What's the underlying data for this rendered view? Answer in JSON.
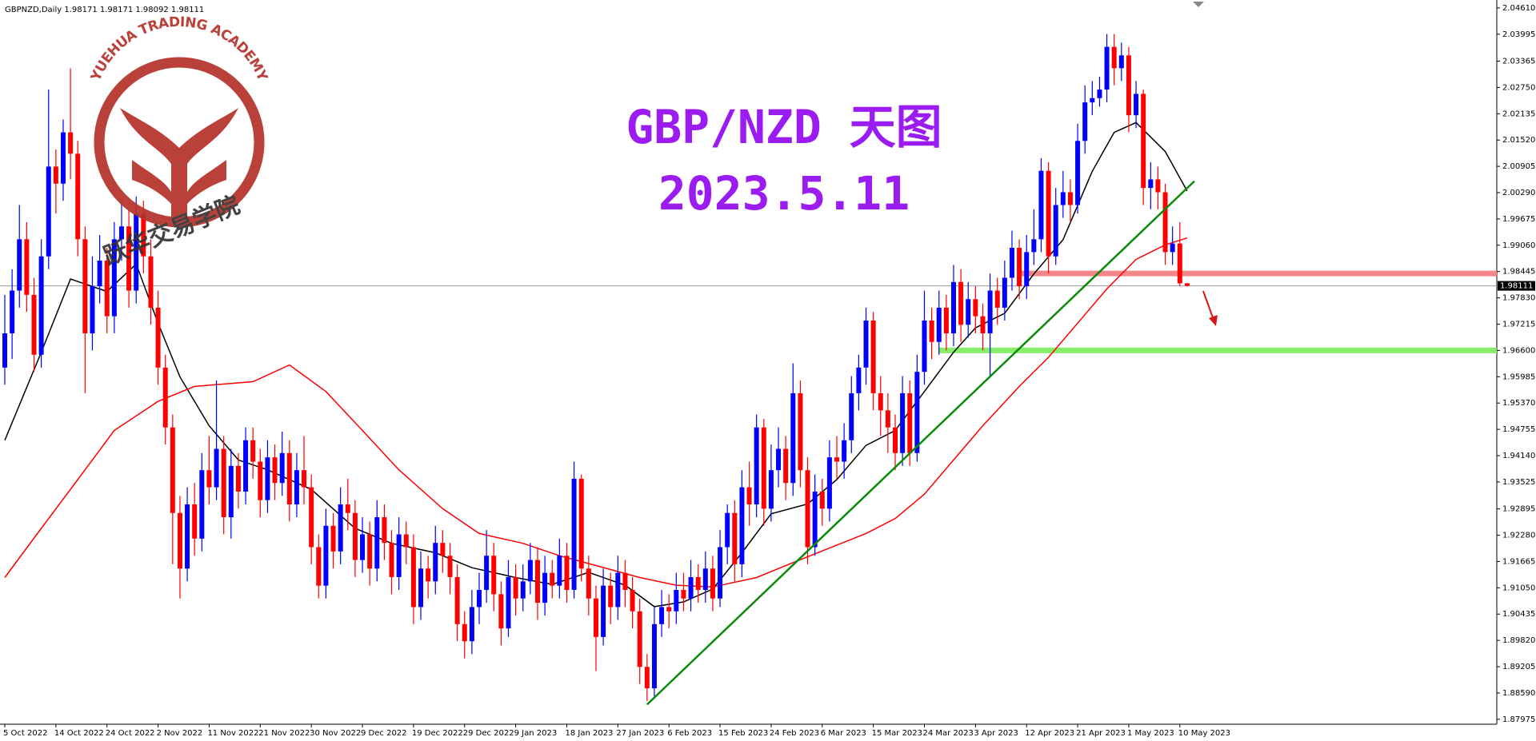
{
  "chart_data": {
    "type": "candlestick",
    "header": "GBPNZD,Daily  1.98171 1.98171 1.98092 1.98111",
    "title": "GBP/NZD 天图",
    "subtitle": "2023.5.11",
    "logo_text": "YUEHUA TRADING ACADEMY",
    "logo_text_cn": "跃华交易学院",
    "up_color": "#0000ff",
    "down_color": "#ff0000",
    "ylim": [
      1.8786,
      2.0472
    ],
    "yticks": [
      {
        "value": 2.0461,
        "label": "2.04610"
      },
      {
        "value": 2.03995,
        "label": "2.03995"
      },
      {
        "value": 2.03365,
        "label": "2.03365"
      },
      {
        "value": 2.0275,
        "label": "2.02750"
      },
      {
        "value": 2.02135,
        "label": "2.02135"
      },
      {
        "value": 2.0152,
        "label": "2.01520"
      },
      {
        "value": 2.00905,
        "label": "2.00905"
      },
      {
        "value": 2.0029,
        "label": "2.00290"
      },
      {
        "value": 1.99675,
        "label": "1.99675"
      },
      {
        "value": 1.9906,
        "label": "1.99060"
      },
      {
        "value": 1.98445,
        "label": "1.98445"
      },
      {
        "value": 1.9783,
        "label": "1.97830"
      },
      {
        "value": 1.97215,
        "label": "1.97215"
      },
      {
        "value": 1.966,
        "label": "1.96600"
      },
      {
        "value": 1.95985,
        "label": "1.95985"
      },
      {
        "value": 1.9537,
        "label": "1.95370"
      },
      {
        "value": 1.94755,
        "label": "1.94755"
      },
      {
        "value": 1.9414,
        "label": "1.94140"
      },
      {
        "value": 1.93525,
        "label": "1.93525"
      },
      {
        "value": 1.92895,
        "label": "1.92895"
      },
      {
        "value": 1.9228,
        "label": "1.92280"
      },
      {
        "value": 1.91665,
        "label": "1.91665"
      },
      {
        "value": 1.9105,
        "label": "1.91050"
      },
      {
        "value": 1.90435,
        "label": "1.90435"
      },
      {
        "value": 1.8982,
        "label": "1.89820"
      },
      {
        "value": 1.89205,
        "label": "1.89205"
      },
      {
        "value": 1.8859,
        "label": "1.88590"
      },
      {
        "value": 1.87975,
        "label": "1.87975"
      }
    ],
    "current_price": {
      "value": 1.98111,
      "label": "1.98111"
    },
    "categories": [
      "5 Oct 2022",
      null,
      null,
      null,
      null,
      null,
      null,
      "14 Oct 2022",
      null,
      null,
      null,
      null,
      null,
      null,
      "24 Oct 2022",
      null,
      null,
      null,
      null,
      null,
      null,
      "2 Nov 2022",
      null,
      null,
      null,
      null,
      null,
      null,
      "11 Nov 2022",
      null,
      null,
      null,
      null,
      null,
      null,
      "21 Nov 2022",
      null,
      null,
      null,
      null,
      null,
      null,
      "30 Nov 2022",
      null,
      null,
      null,
      null,
      null,
      null,
      "9 Dec 2022",
      null,
      null,
      null,
      null,
      null,
      null,
      "19 Dec 2022",
      null,
      null,
      null,
      null,
      null,
      null,
      "29 Dec 2022",
      null,
      null,
      null,
      null,
      null,
      null,
      "9 Jan 2023",
      null,
      null,
      null,
      null,
      null,
      null,
      "18 Jan 2023",
      null,
      null,
      null,
      null,
      null,
      null,
      "27 Jan 2023",
      null,
      null,
      null,
      null,
      null,
      null,
      "6 Feb 2023",
      null,
      null,
      null,
      null,
      null,
      null,
      "15 Feb 2023",
      null,
      null,
      null,
      null,
      null,
      null,
      "24 Feb 2023",
      null,
      null,
      null,
      null,
      null,
      null,
      "6 Mar 2023",
      null,
      null,
      null,
      null,
      null,
      null,
      "15 Mar 2023",
      null,
      null,
      null,
      null,
      null,
      null,
      "24 Mar 2023",
      null,
      null,
      null,
      null,
      null,
      null,
      "3 Apr 2023",
      null,
      null,
      null,
      null,
      null,
      null,
      "12 Apr 2023",
      null,
      null,
      null,
      null,
      null,
      null,
      "21 Apr 2023",
      null,
      null,
      null,
      null,
      null,
      null,
      "1 May 2023",
      null,
      null,
      null,
      null,
      null,
      null,
      "10 May 2023",
      null
    ],
    "open": [
      1.962,
      1.97,
      1.98,
      1.992,
      1.979,
      1.965,
      1.988,
      2.009,
      2.005,
      2.017,
      2.012,
      1.992,
      1.97,
      1.981,
      1.987,
      1.974,
      1.992,
      1.995,
      1.98,
      1.998,
      1.988,
      1.976,
      1.962,
      1.948,
      1.928,
      1.915,
      1.93,
      1.922,
      1.938,
      1.934,
      1.943,
      1.927,
      1.939,
      1.933,
      1.945,
      1.94,
      1.931,
      1.941,
      1.935,
      1.942,
      1.93,
      1.938,
      1.934,
      1.92,
      1.911,
      1.925,
      1.919,
      1.93,
      1.928,
      1.917,
      1.923,
      1.915,
      1.927,
      1.921,
      1.913,
      1.923,
      1.92,
      1.906,
      1.915,
      1.912,
      1.921,
      1.918,
      1.913,
      1.902,
      1.898,
      1.906,
      1.91,
      1.918,
      1.909,
      1.901,
      1.913,
      1.908,
      1.912,
      1.917,
      1.907,
      1.914,
      1.911,
      1.918,
      1.91,
      1.936,
      1.915,
      1.908,
      1.899,
      1.911,
      1.906,
      1.914,
      1.91,
      1.905,
      1.892,
      1.887,
      1.902,
      1.906,
      1.905,
      1.91,
      1.908,
      1.913,
      1.91,
      1.915,
      1.908,
      1.92,
      1.928,
      1.916,
      1.934,
      1.93,
      1.948,
      1.929,
      1.938,
      1.943,
      1.935,
      1.956,
      1.938,
      1.92,
      1.933,
      1.929,
      1.941,
      1.94,
      1.945,
      1.956,
      1.962,
      1.973,
      1.956,
      1.952,
      1.948,
      1.942,
      1.956,
      1.942,
      1.961,
      1.973,
      1.968,
      1.976,
      1.97,
      1.982,
      1.972,
      1.978,
      1.974,
      1.97,
      1.98,
      1.976,
      1.983,
      1.99,
      1.981,
      1.989,
      1.992,
      2.008,
      1.988,
      2.0,
      2.003,
      2.0,
      2.015,
      2.024,
      2.025,
      2.027,
      2.037,
      2.032,
      2.035,
      2.021,
      2.026,
      2.004,
      2.006,
      2.003,
      1.989,
      1.991,
      1.98171
    ],
    "high": [
      1.979,
      1.985,
      2.0,
      1.996,
      1.983,
      1.992,
      2.027,
      2.013,
      2.02,
      2.032,
      2.015,
      1.995,
      1.988,
      1.993,
      1.99,
      1.996,
      2.001,
      1.999,
      2.002,
      2.001,
      1.992,
      1.98,
      1.965,
      1.951,
      1.932,
      1.934,
      1.935,
      1.942,
      1.946,
      1.959,
      1.946,
      1.943,
      1.942,
      1.948,
      1.948,
      1.943,
      1.945,
      1.944,
      1.947,
      1.945,
      1.942,
      1.946,
      1.937,
      1.923,
      1.929,
      1.928,
      1.934,
      1.936,
      1.931,
      1.927,
      1.926,
      1.931,
      1.93,
      1.924,
      1.927,
      1.926,
      1.923,
      1.919,
      1.918,
      1.925,
      1.924,
      1.921,
      1.916,
      1.905,
      1.91,
      1.914,
      1.924,
      1.921,
      1.912,
      1.917,
      1.916,
      1.916,
      1.921,
      1.92,
      1.918,
      1.917,
      1.922,
      1.921,
      1.94,
      1.937,
      1.918,
      1.911,
      1.915,
      1.914,
      1.918,
      1.917,
      1.913,
      1.908,
      1.895,
      1.906,
      1.91,
      1.909,
      1.914,
      1.914,
      1.917,
      1.916,
      1.919,
      1.918,
      1.924,
      1.93,
      1.931,
      1.938,
      1.94,
      1.951,
      1.95,
      1.944,
      1.948,
      1.946,
      1.963,
      1.959,
      1.941,
      1.937,
      1.936,
      1.945,
      1.946,
      1.949,
      1.96,
      1.965,
      1.976,
      1.975,
      1.96,
      1.956,
      1.951,
      1.96,
      1.959,
      1.965,
      1.98,
      1.976,
      1.98,
      1.979,
      1.986,
      1.985,
      1.982,
      1.981,
      1.977,
      1.984,
      1.983,
      1.987,
      1.994,
      1.992,
      1.993,
      1.999,
      2.011,
      2.01,
      2.004,
      2.008,
      2.006,
      2.019,
      2.028,
      2.029,
      2.03,
      2.04,
      2.04,
      2.038,
      2.037,
      2.029,
      2.027,
      2.01,
      2.009,
      2.005,
      1.995,
      1.996,
      1.98171
    ],
    "low": [
      1.958,
      1.964,
      1.976,
      1.975,
      1.961,
      1.962,
      1.985,
      1.998,
      2.001,
      2.006,
      1.988,
      1.956,
      1.966,
      1.977,
      1.97,
      1.97,
      1.987,
      1.976,
      1.977,
      1.984,
      1.972,
      1.958,
      1.944,
      1.916,
      1.908,
      1.912,
      1.918,
      1.919,
      1.93,
      1.931,
      1.923,
      1.922,
      1.929,
      1.93,
      1.936,
      1.927,
      1.928,
      1.931,
      1.932,
      1.926,
      1.927,
      1.93,
      1.916,
      1.908,
      1.908,
      1.915,
      1.916,
      1.924,
      1.913,
      1.914,
      1.911,
      1.912,
      1.917,
      1.909,
      1.91,
      1.916,
      1.902,
      1.903,
      1.908,
      1.909,
      1.914,
      1.909,
      1.898,
      1.894,
      1.895,
      1.902,
      1.907,
      1.905,
      1.897,
      1.899,
      1.904,
      1.905,
      1.909,
      1.903,
      1.904,
      1.908,
      1.908,
      1.907,
      1.908,
      1.912,
      1.904,
      1.891,
      1.897,
      1.902,
      1.903,
      1.906,
      1.901,
      1.888,
      1.884,
      1.885,
      1.899,
      1.901,
      1.902,
      1.905,
      1.905,
      1.907,
      1.907,
      1.905,
      1.906,
      1.916,
      1.912,
      1.913,
      1.925,
      1.927,
      1.925,
      1.926,
      1.934,
      1.931,
      1.932,
      1.934,
      1.916,
      1.918,
      1.925,
      1.926,
      1.936,
      1.936,
      1.942,
      1.952,
      1.958,
      1.952,
      1.946,
      1.942,
      1.938,
      1.939,
      1.939,
      1.94,
      1.958,
      1.964,
      1.965,
      1.966,
      1.967,
      1.968,
      1.969,
      1.97,
      1.966,
      1.96,
      1.972,
      1.973,
      1.98,
      1.978,
      1.978,
      1.986,
      1.989,
      1.984,
      1.986,
      1.997,
      1.996,
      1.998,
      2.012,
      2.021,
      2.023,
      2.024,
      2.028,
      2.029,
      2.017,
      2.018,
      2.0,
      1.999,
      1.999,
      1.986,
      1.986,
      1.981,
      1.98092
    ],
    "close": [
      1.97,
      1.98,
      1.992,
      1.979,
      1.965,
      1.988,
      2.009,
      2.005,
      2.017,
      2.012,
      1.992,
      1.97,
      1.981,
      1.987,
      1.974,
      1.992,
      1.995,
      1.98,
      1.998,
      1.988,
      1.976,
      1.962,
      1.948,
      1.928,
      1.915,
      1.93,
      1.922,
      1.938,
      1.934,
      1.943,
      1.927,
      1.939,
      1.933,
      1.945,
      1.94,
      1.931,
      1.941,
      1.935,
      1.942,
      1.93,
      1.938,
      1.934,
      1.92,
      1.911,
      1.925,
      1.919,
      1.93,
      1.928,
      1.917,
      1.923,
      1.915,
      1.927,
      1.921,
      1.913,
      1.923,
      1.92,
      1.906,
      1.915,
      1.912,
      1.921,
      1.918,
      1.913,
      1.902,
      1.898,
      1.906,
      1.91,
      1.918,
      1.909,
      1.901,
      1.913,
      1.908,
      1.912,
      1.917,
      1.907,
      1.914,
      1.911,
      1.918,
      1.91,
      1.936,
      1.915,
      1.908,
      1.899,
      1.911,
      1.906,
      1.914,
      1.91,
      1.905,
      1.892,
      1.887,
      1.902,
      1.906,
      1.905,
      1.91,
      1.908,
      1.913,
      1.91,
      1.915,
      1.908,
      1.92,
      1.928,
      1.916,
      1.934,
      1.93,
      1.948,
      1.929,
      1.938,
      1.943,
      1.935,
      1.956,
      1.938,
      1.92,
      1.933,
      1.929,
      1.941,
      1.94,
      1.945,
      1.956,
      1.962,
      1.973,
      1.956,
      1.952,
      1.948,
      1.942,
      1.956,
      1.942,
      1.961,
      1.973,
      1.968,
      1.976,
      1.97,
      1.982,
      1.972,
      1.978,
      1.974,
      1.97,
      1.98,
      1.976,
      1.983,
      1.99,
      1.981,
      1.989,
      1.992,
      2.008,
      1.988,
      2.0,
      2.003,
      2.0,
      2.015,
      2.024,
      2.025,
      2.027,
      2.037,
      2.032,
      2.035,
      2.021,
      2.026,
      2.004,
      2.006,
      2.003,
      1.989,
      1.991,
      1.9817,
      1.98111
    ],
    "lines": [
      {
        "color": "#000000",
        "x": [
          0,
          5,
          9,
          14,
          18,
          21,
          24,
          28,
          32,
          36,
          42,
          48,
          53,
          59,
          64,
          70,
          75,
          80,
          85,
          89,
          93,
          97,
          101,
          105,
          110,
          114,
          118,
          122,
          126,
          130,
          133,
          137,
          141,
          145,
          149,
          152,
          155,
          159,
          162
        ],
        "values": [
          1.945,
          1.9656,
          1.9827,
          1.9798,
          1.9862,
          1.9724,
          1.9598,
          1.9484,
          1.9404,
          1.9381,
          1.9335,
          1.9244,
          1.9209,
          1.9187,
          1.9152,
          1.9129,
          1.9113,
          1.9141,
          1.9111,
          1.9061,
          1.9072,
          1.9102,
          1.9187,
          1.9278,
          1.9301,
          1.9358,
          1.9438,
          1.9473,
          1.9564,
          1.9656,
          1.9713,
          1.9747,
          1.9839,
          1.9919,
          2.0079,
          2.017,
          2.0193,
          2.0125,
          2.0033
        ]
      },
      {
        "color": "#ff0000",
        "x": [
          0,
          5,
          10,
          15,
          21,
          26,
          34,
          39,
          44,
          49,
          54,
          60,
          65,
          71,
          76,
          81,
          87,
          92,
          97,
          103,
          108,
          113,
          118,
          122,
          126,
          130,
          134,
          139,
          143,
          147,
          151,
          155,
          159,
          162
        ],
        "values": [
          1.9129,
          1.9244,
          1.9358,
          1.9473,
          1.9541,
          1.9576,
          1.9587,
          1.9626,
          1.9564,
          1.9473,
          1.9381,
          1.929,
          1.9232,
          1.9209,
          1.918,
          1.9157,
          1.9129,
          1.9111,
          1.9107,
          1.9129,
          1.9164,
          1.9198,
          1.9232,
          1.9267,
          1.9324,
          1.9404,
          1.9484,
          1.9576,
          1.9644,
          1.9724,
          1.9804,
          1.9873,
          1.9907,
          1.9923
        ]
      }
    ],
    "trendlines": [
      {
        "color": "#0a8a0a",
        "x": [
          88,
          163
        ],
        "values": [
          1.8832,
          2.0056
        ]
      }
    ],
    "levels": [
      {
        "value": 1.984,
        "color": "#f4878a",
        "from": 139
      },
      {
        "value": 1.966,
        "color": "#86ee6a",
        "from": 128
      }
    ]
  }
}
